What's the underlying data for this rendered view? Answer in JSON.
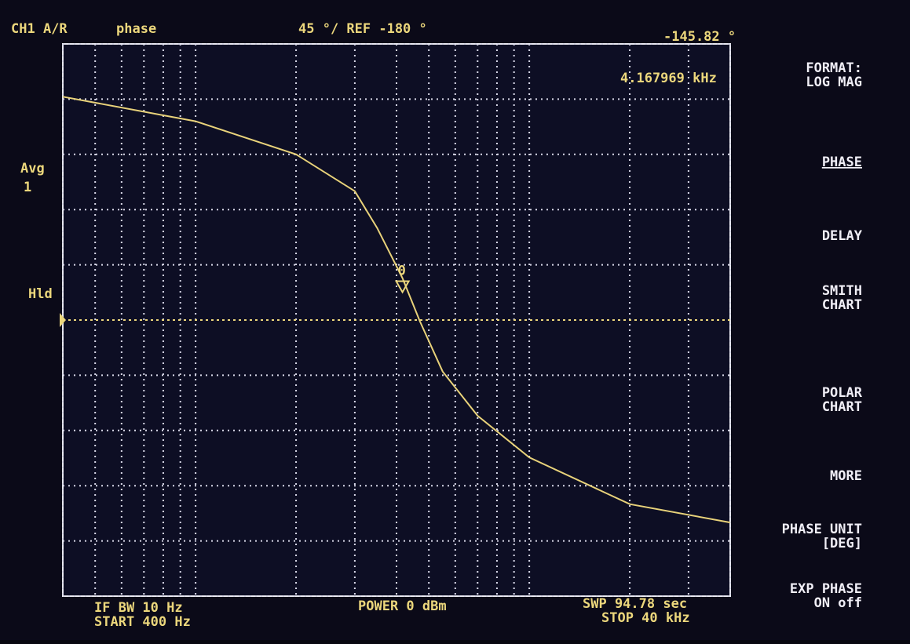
{
  "header": {
    "channel": "CH1 A/R",
    "measurement": "phase",
    "scale": "45 °/ REF -180 °",
    "marker_value": "-145.82 °",
    "marker_freq": "4.167969 kHz"
  },
  "left_labels": [
    "Avg",
    "1",
    "Hld"
  ],
  "marker_label": "0",
  "footer": {
    "ifbw": "IF BW 10 Hz",
    "start": "START 400 Hz",
    "power": "POWER 0 dBm",
    "sweep": "SWP 94.78 sec",
    "stop": "STOP 40 kHz"
  },
  "softkeys": [
    [
      "FORMAT:",
      "LOG MAG"
    ],
    [
      "PHASE"
    ],
    [
      "DELAY"
    ],
    [
      "SMITH",
      "CHART"
    ],
    [
      "POLAR",
      "CHART"
    ],
    [
      "MORE"
    ],
    [
      "PHASE UNIT",
      "[DEG]"
    ],
    [
      "EXP PHASE",
      "ON off"
    ]
  ],
  "chart_data": {
    "type": "line",
    "log_x": true,
    "grid": true,
    "x": [
      400,
      1000,
      2000,
      3000,
      3500,
      4168,
      4700,
      5500,
      7000,
      10000,
      20000,
      40000
    ],
    "series": [
      {
        "color": "#e8d27a",
        "values": [
          2,
          -18,
          -45,
          -75,
          -105,
          -145.82,
          -181,
          -222,
          -258,
          -292,
          -330,
          -345
        ]
      }
    ],
    "xlim": [
      400,
      40000
    ],
    "ylim": [
      -405,
      45
    ],
    "xticks": [
      400,
      500,
      600,
      700,
      800,
      900,
      1000,
      2000,
      3000,
      4000,
      5000,
      6000,
      7000,
      8000,
      9000,
      10000,
      20000,
      30000,
      40000
    ],
    "yticks": [
      -405,
      -360,
      -315,
      -270,
      -225,
      -180,
      -135,
      -90,
      -45,
      0,
      45
    ],
    "ref_line": -180,
    "marker_x": 4168
  }
}
